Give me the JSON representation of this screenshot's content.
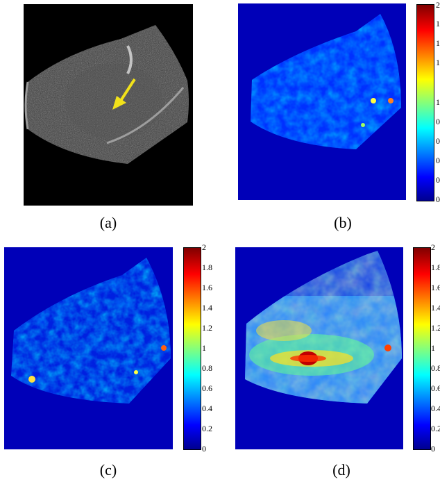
{
  "panels": [
    {
      "caption": "(a)"
    },
    {
      "caption": "(b)",
      "colorbar_ticks": [
        "2",
        "1.",
        "1.",
        "1.",
        "1",
        "0.",
        "0.",
        "0.",
        "0.",
        "0"
      ]
    },
    {
      "caption": "(c)",
      "colorbar_ticks": [
        "2",
        "1.8",
        "1.6",
        "1.4",
        "1.2",
        "1",
        "0.8",
        "0.6",
        "0.4",
        "0.2",
        "0"
      ]
    },
    {
      "caption": "(d)",
      "colorbar_ticks": [
        "2",
        "1.8",
        "1.6",
        "1.4",
        "1.2",
        "1",
        "0.8",
        "0.6",
        "0.4",
        "0.2",
        "0"
      ]
    }
  ],
  "colors": {
    "arrow": "#f2e21a",
    "background_map": "#0000b8",
    "ultrasound_bg": "#000000"
  }
}
